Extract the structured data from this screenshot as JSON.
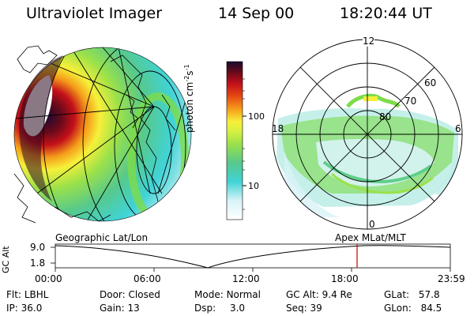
{
  "header": {
    "instrument": "Ultraviolet Imager",
    "date": "14 Sep 00",
    "time": "18:20:44 UT"
  },
  "colorbar": {
    "unit_label": "photon cm",
    "exp1": "-2",
    "mid": "s",
    "exp2": "-1",
    "tick_high": "100",
    "tick_low": "10"
  },
  "polar": {
    "mlt_12": "12",
    "mlt_18": "18",
    "mlt_6": "6",
    "mlt_0": "0",
    "lat_60": "60",
    "lat_70": "70",
    "lat_80": "80"
  },
  "panel_labels": {
    "left": "Geographic Lat/Lon",
    "right": "Apex MLat/MLT"
  },
  "altitude_plot": {
    "axis_label": "GC Alt",
    "y_max": "9.0",
    "y_min": "1.8",
    "x_ticks": [
      "00:00",
      "06:00",
      "12:00",
      "18:00",
      "23:59"
    ],
    "current_time_fraction": 0.764
  },
  "info": {
    "filter_label": "Flt:",
    "filter_value": "LBHL",
    "ip_label": "IP:",
    "ip_value": "36.0",
    "door_label": "Door:",
    "door_value": "Closed",
    "gain_label": "Gain:",
    "gain_value": "13",
    "mode_label": "Mode:",
    "mode_value": "Normal",
    "dsp_label": "Dsp:",
    "dsp_value": "3.0",
    "gcalt_label": "GC Alt:",
    "gcalt_value": "9.4 Re",
    "seq_label": "Seq:",
    "seq_value": "39",
    "glat_label": "GLat:",
    "glat_value": "57.8",
    "glon_label": "GLon:",
    "glon_value": "84.5"
  },
  "colors": {
    "red_marker": "#c00000"
  }
}
